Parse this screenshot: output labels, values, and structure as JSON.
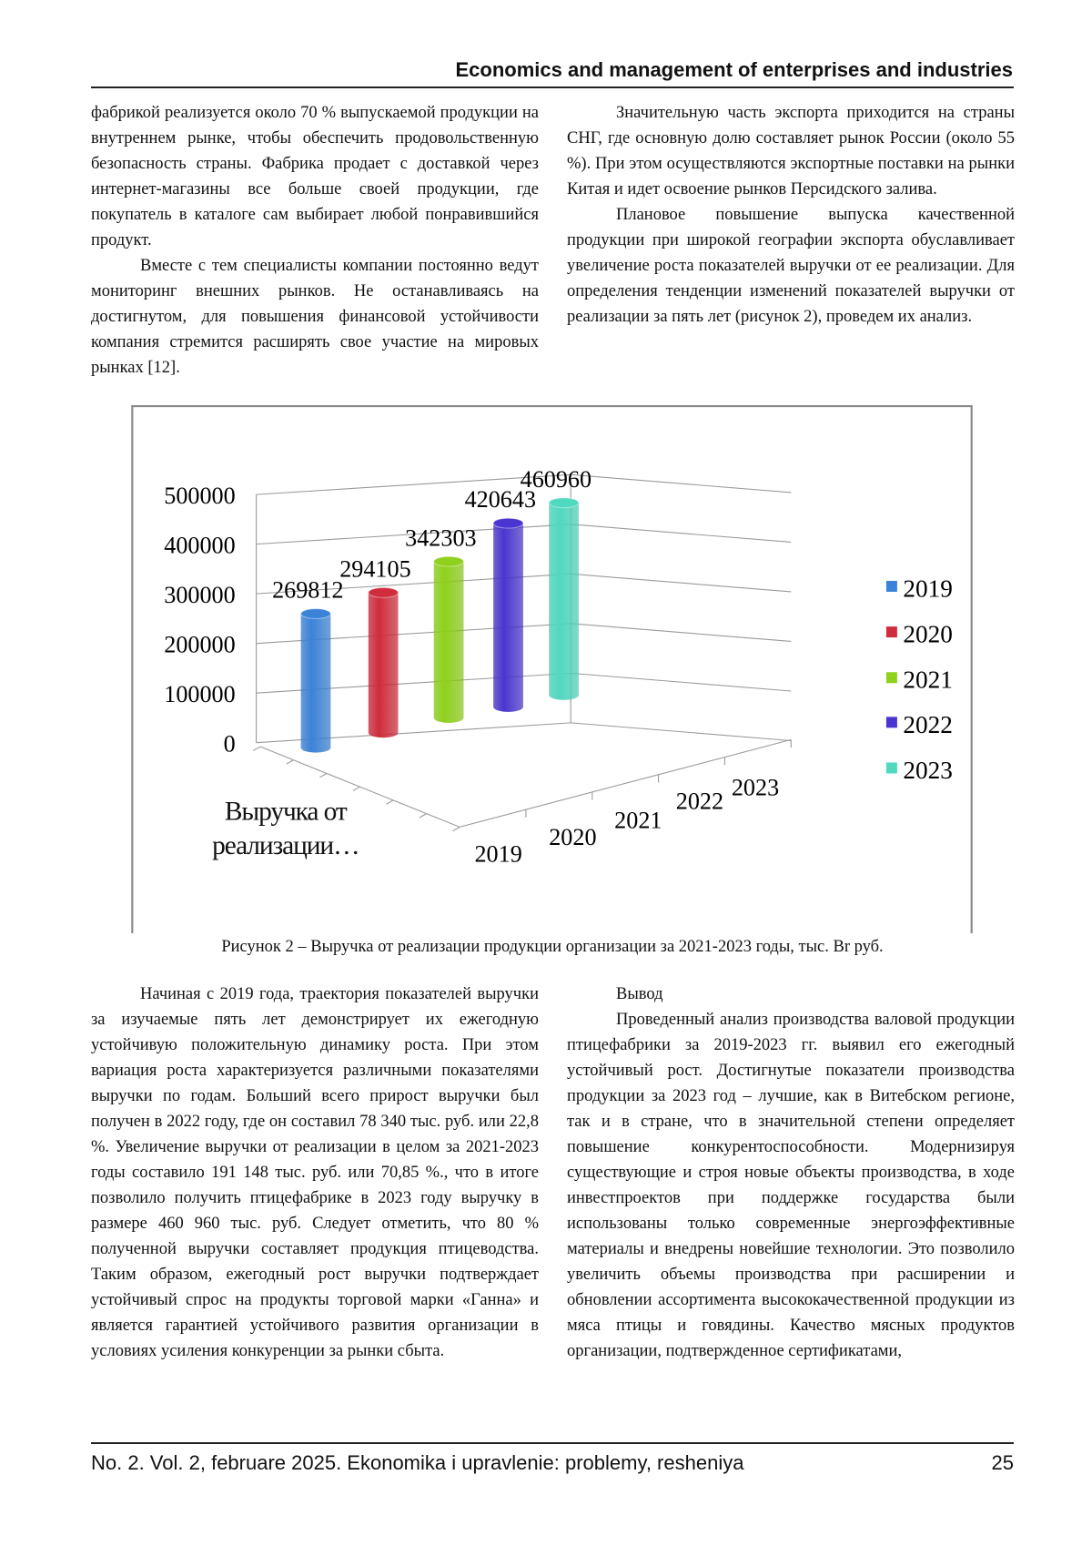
{
  "header": {
    "title": "Economics and management of enterprises and industries"
  },
  "body_top": {
    "left": [
      "фабрикой реализуется около 70 % выпускаемой продукции на внутреннем рынке, чтобы обеспечить продовольственную безопасность страны. Фабрика продает с доставкой через интернет-магазины все больше своей продукции, где покупатель в каталоге сам выбирает любой понравившийся продукт.",
      "Вместе с тем специалисты компании постоянно ведут мониторинг внешних рынков. Не останавливаясь на достигнутом, для повышения финансовой устойчивости компания стремится расширять свое участие на мировых рынках [12]."
    ],
    "right": [
      "Значительную часть экспорта приходится на страны СНГ, где основную долю составляет рынок России (около 55 %). При этом осуществляются экспортные поставки на рынки Китая и идет освоение рынков Персидского залива.",
      "Плановое повышение выпуска качественной продукции при широкой географии экспорта обуславливает увеличение роста показателей выручки от ее реализации. Для определения тенденции изменений показателей выручки от реализации за пять лет (рисунок 2), проведем их анализ."
    ]
  },
  "chart_data": {
    "type": "bar",
    "categories": [
      "Выручка от реализации…"
    ],
    "series": [
      {
        "name": "2019",
        "color": "#3b83d8",
        "values": [
          269812
        ]
      },
      {
        "name": "2020",
        "color": "#d02c3c",
        "values": [
          294105
        ]
      },
      {
        "name": "2021",
        "color": "#8fd11c",
        "values": [
          342303
        ]
      },
      {
        "name": "2022",
        "color": "#4a35d0",
        "values": [
          420643
        ]
      },
      {
        "name": "2023",
        "color": "#4fd9c0",
        "values": [
          460960
        ]
      }
    ],
    "ylim": [
      0,
      500000
    ],
    "yticks": [
      0,
      100000,
      200000,
      300000,
      400000,
      500000
    ],
    "grid": true,
    "legend": "right"
  },
  "figure": {
    "caption": "Рисунок 2 – Выручка от реализации продукции организации за 2021-2023 годы, тыс. Br руб."
  },
  "body_bottom": {
    "left": [
      "Начиная с 2019 года, траектория показателей выручки за изучаемые пять лет демонстрирует их ежегодную устойчивую положительную динамику роста. При этом вариация роста характеризуется различными показателями выручки по годам. Больший всего прирост выручки был получен в 2022 году, где он составил 78 340 тыс. руб. или 22,8 %. Увеличение выручки от реализации в целом за 2021-2023 годы составило 191 148 тыс. руб. или 70,85 %., что в итоге позволило получить птицефабрике в 2023 году выручку в размере 460 960 тыс. руб. Следует отметить, что 80 % полученной выручки составляет продукция птицеводства. Таким образом, ежегодный рост выручки подтверждает устойчивый спрос на продукты торговой марки «Ганна» и является гарантией устойчивого развития организации в условиях усиления конкуренции за рынки сбыта."
    ],
    "right": {
      "heading": "Вывод",
      "paragraphs": [
        "Проведенный анализ производства валовой продукции птицефабрики за 2019-2023 гг. выявил его ежегодный устойчивый рост. Достигнутые показатели производства продукции за 2023 год – лучшие, как в Витебском регионе, так и в стране, что в значительной степени определяет повышение конкурентоспособности. Модернизируя существующие и строя новые объекты производства, в ходе инвестпроектов при поддержке государства были использованы только современные энергоэффективные материалы и внедрены новейшие технологии. Это позволило увеличить объемы производства при расширении и обновлении ассортимента высококачественной продукции из мяса птицы и говядины. Качество мясных продуктов организации, подтвержденное сертификатами,"
      ]
    }
  },
  "footer": {
    "journal": "No. 2. Vol. 2, februare 2025. Ekonomika i upravlenie: problemy, resheniya",
    "page": 25
  }
}
